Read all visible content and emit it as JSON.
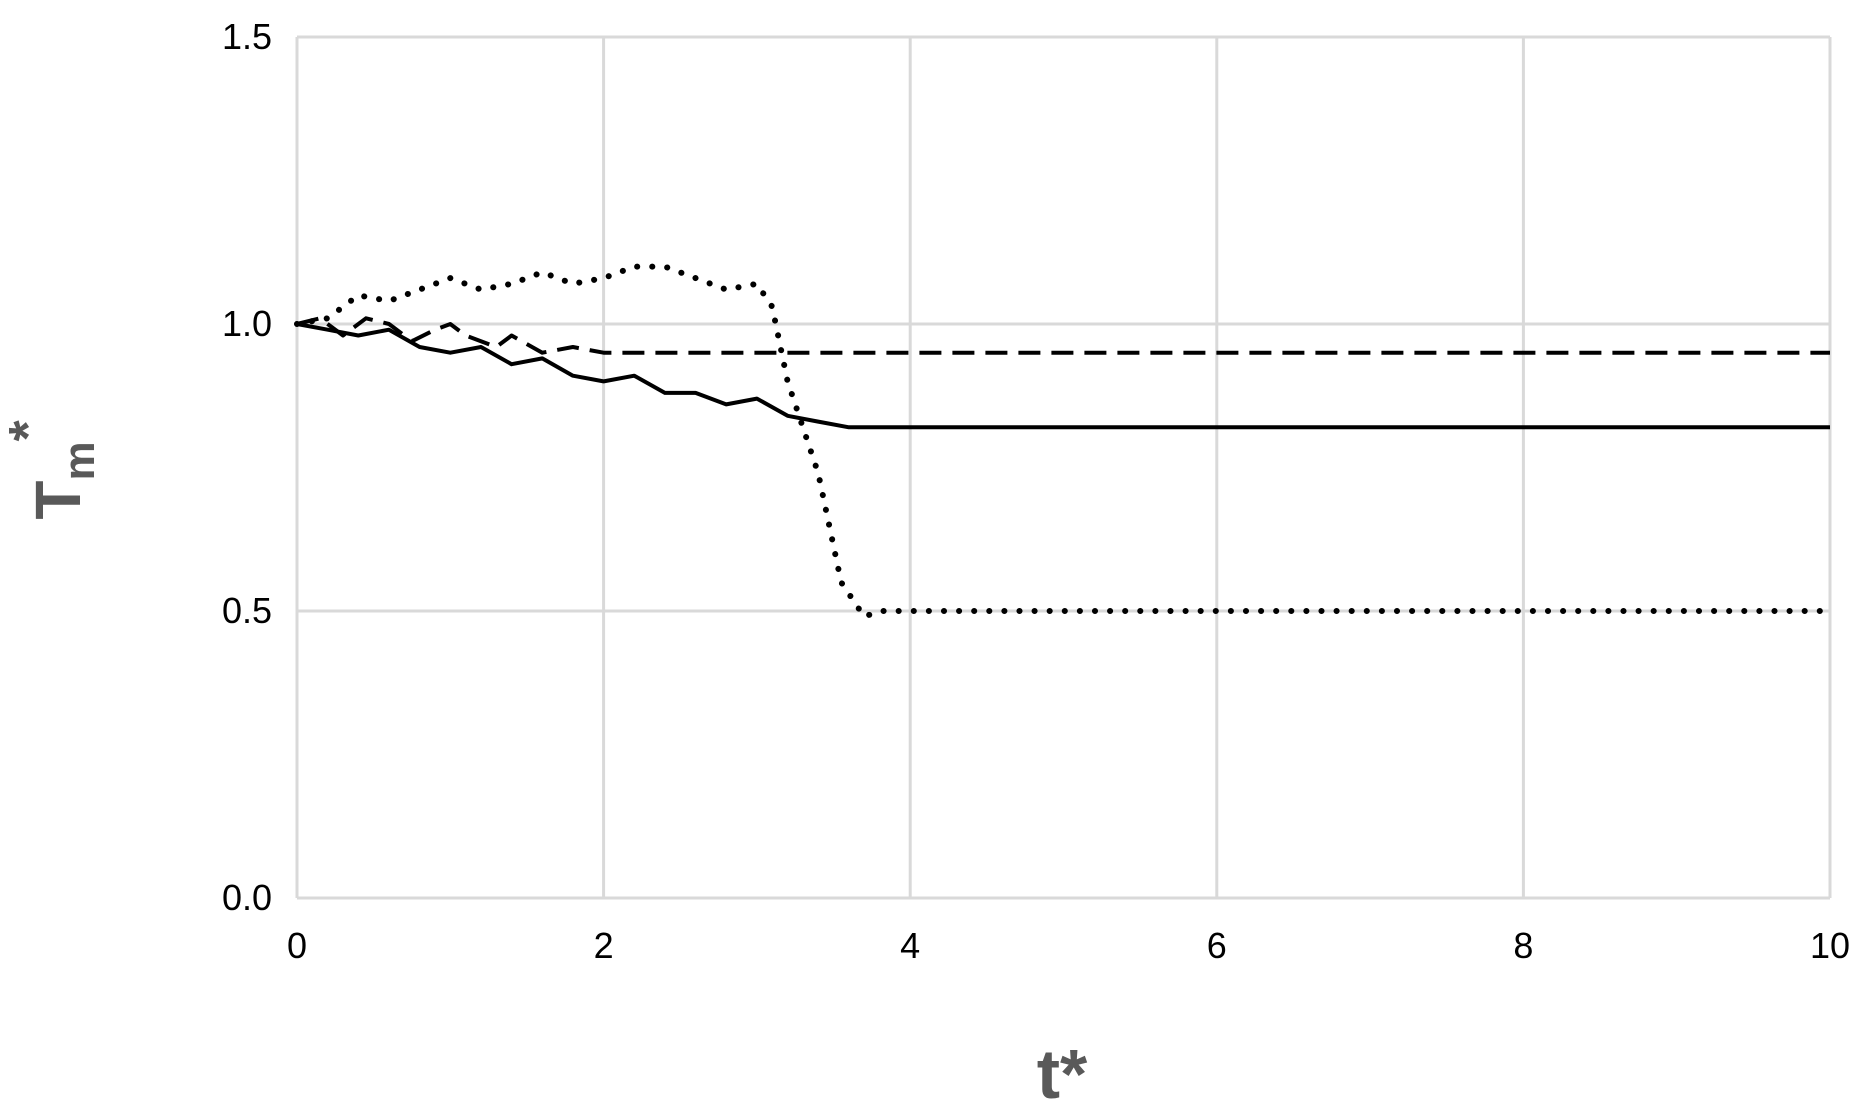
{
  "chart_data": {
    "type": "line",
    "title": "",
    "xlabel": "t*",
    "ylabel": {
      "base": "T",
      "subscript": "m",
      "superscript": "*"
    },
    "xlim": [
      0,
      10
    ],
    "ylim": [
      0,
      1.5
    ],
    "x_ticks": [
      "0",
      "2",
      "4",
      "6",
      "8",
      "10"
    ],
    "y_ticks": [
      "0.0",
      "0.5",
      "1.0",
      "1.5"
    ],
    "grid": true,
    "legend": "none",
    "colors": {
      "line": "#000000",
      "grid": "#d9d9d9",
      "axis_title": "#595959"
    },
    "series": [
      {
        "style": "solid",
        "points": [
          [
            0,
            1.0
          ],
          [
            0.2,
            0.99
          ],
          [
            0.4,
            0.98
          ],
          [
            0.6,
            0.99
          ],
          [
            0.8,
            0.96
          ],
          [
            1.0,
            0.95
          ],
          [
            1.2,
            0.96
          ],
          [
            1.4,
            0.93
          ],
          [
            1.6,
            0.94
          ],
          [
            1.8,
            0.91
          ],
          [
            2.0,
            0.9
          ],
          [
            2.2,
            0.91
          ],
          [
            2.4,
            0.88
          ],
          [
            2.6,
            0.88
          ],
          [
            2.8,
            0.86
          ],
          [
            3.0,
            0.87
          ],
          [
            3.2,
            0.84
          ],
          [
            3.4,
            0.83
          ],
          [
            3.6,
            0.82
          ],
          [
            3.8,
            0.82
          ],
          [
            10,
            0.82
          ]
        ]
      },
      {
        "style": "dashed",
        "points": [
          [
            0,
            1.0
          ],
          [
            0.15,
            1.01
          ],
          [
            0.3,
            0.98
          ],
          [
            0.45,
            1.01
          ],
          [
            0.6,
            1.0
          ],
          [
            0.75,
            0.97
          ],
          [
            0.9,
            0.99
          ],
          [
            1.0,
            1.0
          ],
          [
            1.1,
            0.98
          ],
          [
            1.3,
            0.96
          ],
          [
            1.4,
            0.98
          ],
          [
            1.6,
            0.95
          ],
          [
            1.8,
            0.96
          ],
          [
            2.0,
            0.95
          ],
          [
            10,
            0.95
          ]
        ]
      },
      {
        "style": "dotted",
        "points": [
          [
            0,
            1.0
          ],
          [
            0.2,
            1.01
          ],
          [
            0.4,
            1.05
          ],
          [
            0.6,
            1.04
          ],
          [
            0.8,
            1.06
          ],
          [
            1.0,
            1.08
          ],
          [
            1.2,
            1.06
          ],
          [
            1.4,
            1.07
          ],
          [
            1.6,
            1.09
          ],
          [
            1.8,
            1.07
          ],
          [
            2.0,
            1.08
          ],
          [
            2.2,
            1.1
          ],
          [
            2.4,
            1.1
          ],
          [
            2.6,
            1.08
          ],
          [
            2.8,
            1.06
          ],
          [
            3.0,
            1.07
          ],
          [
            3.1,
            1.03
          ],
          [
            3.2,
            0.9
          ],
          [
            3.4,
            0.74
          ],
          [
            3.55,
            0.55
          ],
          [
            3.7,
            0.49
          ],
          [
            3.8,
            0.5
          ],
          [
            10,
            0.5
          ]
        ]
      }
    ]
  }
}
